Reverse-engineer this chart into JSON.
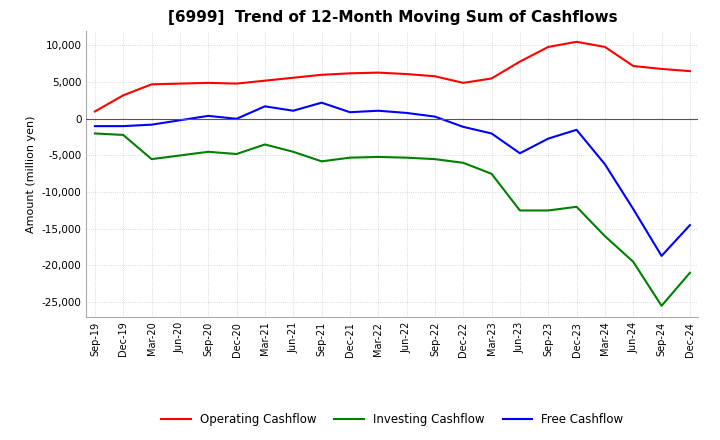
{
  "title": "[6999]  Trend of 12-Month Moving Sum of Cashflows",
  "ylabel": "Amount (million yen)",
  "ylim": [
    -27000,
    12000
  ],
  "yticks": [
    10000,
    5000,
    0,
    -5000,
    -10000,
    -15000,
    -20000,
    -25000
  ],
  "x_labels": [
    "Sep-19",
    "Dec-19",
    "Mar-20",
    "Jun-20",
    "Sep-20",
    "Dec-20",
    "Mar-21",
    "Jun-21",
    "Sep-21",
    "Dec-21",
    "Mar-22",
    "Jun-22",
    "Sep-22",
    "Dec-22",
    "Mar-23",
    "Jun-23",
    "Sep-23",
    "Dec-23",
    "Mar-24",
    "Jun-24",
    "Sep-24",
    "Dec-24"
  ],
  "operating": [
    1000,
    3200,
    4700,
    4800,
    4900,
    4800,
    5200,
    5600,
    6000,
    6200,
    6300,
    6100,
    5800,
    4900,
    5500,
    7800,
    9800,
    10500,
    9800,
    7200,
    6800,
    6500
  ],
  "investing": [
    -2000,
    -2200,
    -5500,
    -5000,
    -4500,
    -4800,
    -3500,
    -4500,
    -5800,
    -5300,
    -5200,
    -5300,
    -5500,
    -6000,
    -7500,
    -12500,
    -12500,
    -12000,
    -16000,
    -19500,
    -25500,
    -21000
  ],
  "free": [
    -1000,
    -1000,
    -800,
    -200,
    400,
    0,
    1700,
    1100,
    2200,
    900,
    1100,
    800,
    300,
    -1100,
    -2000,
    -4700,
    -2700,
    -1500,
    -6200,
    -12300,
    -18700,
    -14500
  ],
  "operating_color": "#ff0000",
  "investing_color": "#008000",
  "free_color": "#0000ff",
  "background_color": "#ffffff",
  "grid_color": "#cccccc",
  "title_fontsize": 11,
  "legend_labels": [
    "Operating Cashflow",
    "Investing Cashflow",
    "Free Cashflow"
  ]
}
